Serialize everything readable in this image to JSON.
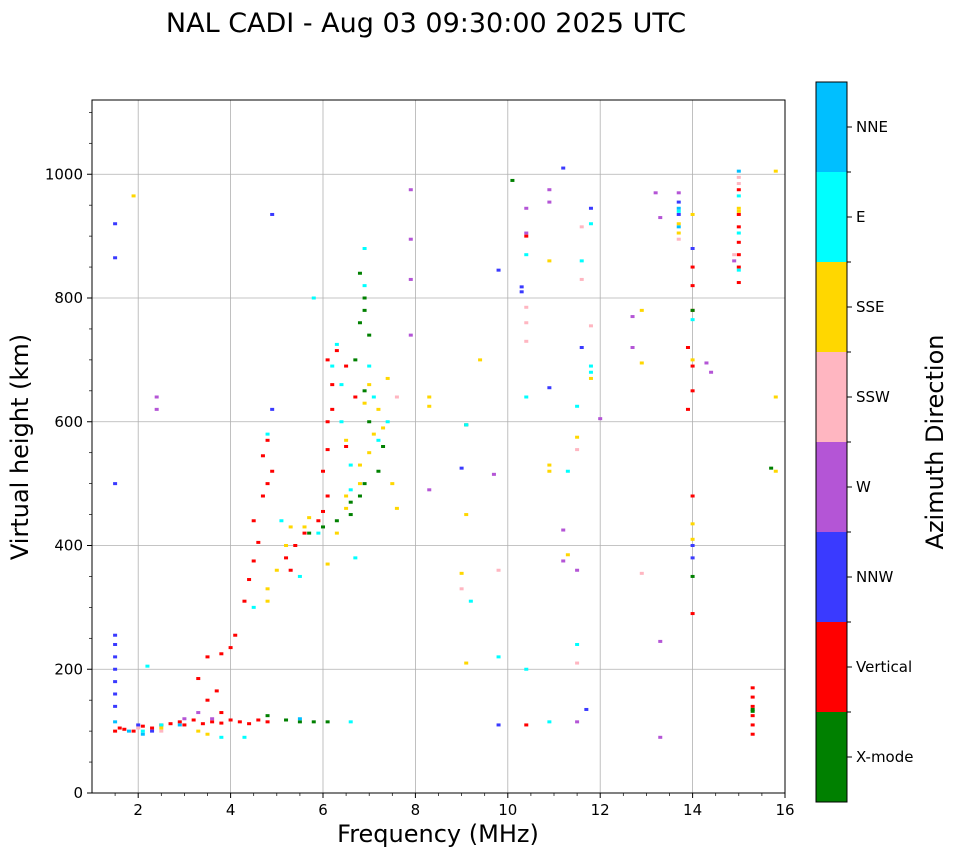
{
  "chart_data": {
    "type": "scatter",
    "title": "NAL CADI - Aug 03 09:30:00 2025 UTC",
    "xlabel": "Frequency (MHz)",
    "ylabel": "Virtual height (km)",
    "xlim": [
      1,
      16
    ],
    "ylim": [
      0,
      1120
    ],
    "xticks": [
      2,
      4,
      6,
      8,
      10,
      12,
      14,
      16
    ],
    "yticks": [
      0,
      200,
      400,
      600,
      800,
      1000
    ],
    "grid": true,
    "colorbar": {
      "label": "Azimuth Direction",
      "categories": [
        {
          "name": "X-mode",
          "color": "#008000"
        },
        {
          "name": "Vertical",
          "color": "#ff0000"
        },
        {
          "name": "NNW",
          "color": "#3a3aff"
        },
        {
          "name": "W",
          "color": "#b455d6"
        },
        {
          "name": "SSW",
          "color": "#ffb6c1"
        },
        {
          "name": "SSE",
          "color": "#ffd700"
        },
        {
          "name": "E",
          "color": "#00ffff"
        },
        {
          "name": "NNE",
          "color": "#00bfff"
        }
      ]
    },
    "series": [
      {
        "name": "Vertical",
        "points": [
          [
            1.5,
            100
          ],
          [
            1.6,
            105
          ],
          [
            1.7,
            103
          ],
          [
            1.9,
            100
          ],
          [
            2.1,
            108
          ],
          [
            2.3,
            105
          ],
          [
            2.5,
            110
          ],
          [
            2.7,
            112
          ],
          [
            2.9,
            115
          ],
          [
            3.0,
            110
          ],
          [
            3.2,
            118
          ],
          [
            3.4,
            112
          ],
          [
            3.6,
            115
          ],
          [
            3.8,
            113
          ],
          [
            4.0,
            118
          ],
          [
            4.2,
            115
          ],
          [
            4.4,
            112
          ],
          [
            4.6,
            118
          ],
          [
            4.8,
            115
          ],
          [
            3.8,
            130
          ],
          [
            3.5,
            150
          ],
          [
            3.7,
            165
          ],
          [
            3.3,
            185
          ],
          [
            3.5,
            220
          ],
          [
            3.8,
            225
          ],
          [
            4.0,
            235
          ],
          [
            4.1,
            255
          ],
          [
            4.3,
            310
          ],
          [
            4.4,
            345
          ],
          [
            4.5,
            375
          ],
          [
            4.6,
            405
          ],
          [
            4.5,
            440
          ],
          [
            4.7,
            480
          ],
          [
            4.8,
            500
          ],
          [
            4.9,
            520
          ],
          [
            4.7,
            545
          ],
          [
            4.8,
            570
          ],
          [
            5.2,
            380
          ],
          [
            5.4,
            400
          ],
          [
            5.6,
            420
          ],
          [
            5.3,
            360
          ],
          [
            5.9,
            440
          ],
          [
            6.0,
            455
          ],
          [
            6.1,
            480
          ],
          [
            6.0,
            520
          ],
          [
            6.1,
            555
          ],
          [
            6.1,
            600
          ],
          [
            6.2,
            620
          ],
          [
            6.2,
            660
          ],
          [
            6.1,
            700
          ],
          [
            6.3,
            715
          ],
          [
            6.5,
            690
          ],
          [
            6.7,
            640
          ],
          [
            6.5,
            560
          ],
          [
            14.0,
            290
          ],
          [
            14.0,
            480
          ],
          [
            13.9,
            620
          ],
          [
            14.0,
            650
          ],
          [
            14.0,
            690
          ],
          [
            13.9,
            720
          ],
          [
            14.0,
            780
          ],
          [
            14.0,
            820
          ],
          [
            14.0,
            850
          ],
          [
            15.0,
            825
          ],
          [
            15.0,
            850
          ],
          [
            15.0,
            870
          ],
          [
            15.0,
            890
          ],
          [
            15.0,
            915
          ],
          [
            15.0,
            935
          ],
          [
            15.0,
            975
          ],
          [
            15.3,
            95
          ],
          [
            15.3,
            110
          ],
          [
            15.3,
            125
          ],
          [
            15.3,
            140
          ],
          [
            15.3,
            155
          ],
          [
            15.3,
            170
          ],
          [
            10.4,
            900
          ],
          [
            10.4,
            110
          ]
        ]
      },
      {
        "name": "X-mode",
        "points": [
          [
            4.8,
            125
          ],
          [
            5.2,
            118
          ],
          [
            5.5,
            115
          ],
          [
            5.8,
            115
          ],
          [
            6.1,
            115
          ],
          [
            5.7,
            420
          ],
          [
            6.0,
            430
          ],
          [
            6.3,
            440
          ],
          [
            6.6,
            450
          ],
          [
            6.6,
            470
          ],
          [
            6.8,
            480
          ],
          [
            6.9,
            500
          ],
          [
            7.2,
            520
          ],
          [
            7.3,
            560
          ],
          [
            7.0,
            600
          ],
          [
            6.9,
            650
          ],
          [
            6.7,
            700
          ],
          [
            7.0,
            740
          ],
          [
            6.8,
            760
          ],
          [
            6.9,
            800
          ],
          [
            6.8,
            840
          ],
          [
            6.9,
            780
          ],
          [
            9.1,
            595
          ],
          [
            10.1,
            990
          ],
          [
            15.3,
            135
          ],
          [
            15.7,
            525
          ],
          [
            14.0,
            350
          ],
          [
            14.0,
            780
          ],
          [
            15.3,
            132
          ]
        ]
      },
      {
        "name": "NNW",
        "points": [
          [
            1.5,
            920
          ],
          [
            1.5,
            865
          ],
          [
            1.5,
            500
          ],
          [
            1.5,
            255
          ],
          [
            1.5,
            240
          ],
          [
            1.5,
            220
          ],
          [
            1.5,
            200
          ],
          [
            1.5,
            180
          ],
          [
            1.5,
            160
          ],
          [
            1.5,
            140
          ],
          [
            2.0,
            110
          ],
          [
            2.3,
            100
          ],
          [
            4.9,
            620
          ],
          [
            4.9,
            935
          ],
          [
            9.0,
            525
          ],
          [
            9.8,
            845
          ],
          [
            10.3,
            818
          ],
          [
            10.9,
            655
          ],
          [
            11.2,
            1010
          ],
          [
            11.6,
            720
          ],
          [
            11.8,
            945
          ],
          [
            13.7,
            955
          ],
          [
            13.7,
            935
          ],
          [
            14.0,
            880
          ],
          [
            14.0,
            380
          ],
          [
            14.0,
            400
          ],
          [
            11.7,
            135
          ],
          [
            9.8,
            110
          ],
          [
            10.3,
            810
          ]
        ]
      },
      {
        "name": "W",
        "points": [
          [
            2.4,
            620
          ],
          [
            2.4,
            640
          ],
          [
            3.0,
            120
          ],
          [
            3.3,
            130
          ],
          [
            3.6,
            120
          ],
          [
            7.9,
            975
          ],
          [
            7.9,
            895
          ],
          [
            7.9,
            830
          ],
          [
            7.9,
            740
          ],
          [
            8.3,
            490
          ],
          [
            9.7,
            515
          ],
          [
            10.4,
            945
          ],
          [
            10.4,
            905
          ],
          [
            10.9,
            975
          ],
          [
            10.9,
            955
          ],
          [
            11.2,
            425
          ],
          [
            11.2,
            375
          ],
          [
            11.5,
            360
          ],
          [
            11.5,
            115
          ],
          [
            12.0,
            605
          ],
          [
            12.7,
            720
          ],
          [
            12.7,
            770
          ],
          [
            13.2,
            970
          ],
          [
            13.3,
            930
          ],
          [
            13.3,
            245
          ],
          [
            13.3,
            90
          ],
          [
            14.3,
            695
          ],
          [
            14.4,
            680
          ],
          [
            13.7,
            970
          ],
          [
            14.9,
            860
          ]
        ]
      },
      {
        "name": "SSW",
        "points": [
          [
            2.0,
            105
          ],
          [
            2.5,
            100
          ],
          [
            7.6,
            640
          ],
          [
            9.0,
            330
          ],
          [
            9.8,
            360
          ],
          [
            10.4,
            785
          ],
          [
            10.4,
            760
          ],
          [
            10.4,
            730
          ],
          [
            11.5,
            555
          ],
          [
            11.5,
            210
          ],
          [
            11.6,
            915
          ],
          [
            11.6,
            830
          ],
          [
            11.8,
            755
          ],
          [
            12.9,
            355
          ],
          [
            13.7,
            895
          ],
          [
            15.0,
            995
          ],
          [
            15.0,
            985
          ],
          [
            14.9,
            870
          ]
        ]
      },
      {
        "name": "SSE",
        "points": [
          [
            1.9,
            965
          ],
          [
            2.5,
            105
          ],
          [
            3.3,
            100
          ],
          [
            3.5,
            95
          ],
          [
            4.8,
            310
          ],
          [
            4.8,
            330
          ],
          [
            5.0,
            360
          ],
          [
            5.2,
            400
          ],
          [
            5.3,
            430
          ],
          [
            5.6,
            430
          ],
          [
            5.7,
            445
          ],
          [
            6.1,
            370
          ],
          [
            6.3,
            420
          ],
          [
            6.5,
            460
          ],
          [
            6.5,
            480
          ],
          [
            6.8,
            500
          ],
          [
            6.8,
            530
          ],
          [
            7.0,
            550
          ],
          [
            7.1,
            580
          ],
          [
            7.3,
            590
          ],
          [
            7.2,
            620
          ],
          [
            7.0,
            660
          ],
          [
            7.4,
            670
          ],
          [
            7.6,
            460
          ],
          [
            7.5,
            500
          ],
          [
            6.5,
            570
          ],
          [
            6.9,
            630
          ],
          [
            8.3,
            640
          ],
          [
            8.3,
            625
          ],
          [
            9.1,
            450
          ],
          [
            9.0,
            355
          ],
          [
            9.1,
            210
          ],
          [
            9.4,
            700
          ],
          [
            10.9,
            860
          ],
          [
            10.9,
            530
          ],
          [
            10.9,
            520
          ],
          [
            11.3,
            385
          ],
          [
            11.5,
            575
          ],
          [
            11.8,
            670
          ],
          [
            12.9,
            780
          ],
          [
            12.9,
            695
          ],
          [
            13.7,
            920
          ],
          [
            13.7,
            905
          ],
          [
            14.0,
            935
          ],
          [
            14.0,
            700
          ],
          [
            14.0,
            435
          ],
          [
            14.0,
            410
          ],
          [
            15.0,
            945
          ],
          [
            15.0,
            940
          ],
          [
            15.8,
            1005
          ],
          [
            15.8,
            640
          ],
          [
            15.8,
            520
          ]
        ]
      },
      {
        "name": "E",
        "points": [
          [
            2.2,
            205
          ],
          [
            2.1,
            100
          ],
          [
            2.5,
            110
          ],
          [
            3.8,
            90
          ],
          [
            4.3,
            90
          ],
          [
            4.5,
            300
          ],
          [
            4.8,
            580
          ],
          [
            5.1,
            440
          ],
          [
            5.5,
            350
          ],
          [
            5.8,
            800
          ],
          [
            5.9,
            420
          ],
          [
            6.2,
            690
          ],
          [
            6.3,
            725
          ],
          [
            6.4,
            660
          ],
          [
            6.4,
            600
          ],
          [
            6.6,
            530
          ],
          [
            6.6,
            490
          ],
          [
            6.6,
            115
          ],
          [
            6.7,
            380
          ],
          [
            6.9,
            880
          ],
          [
            6.9,
            820
          ],
          [
            7.0,
            690
          ],
          [
            7.1,
            640
          ],
          [
            7.2,
            570
          ],
          [
            7.4,
            600
          ],
          [
            9.1,
            595
          ],
          [
            9.2,
            310
          ],
          [
            9.8,
            220
          ],
          [
            10.4,
            870
          ],
          [
            10.4,
            640
          ],
          [
            10.4,
            200
          ],
          [
            10.9,
            115
          ],
          [
            11.3,
            520
          ],
          [
            11.5,
            625
          ],
          [
            11.5,
            240
          ],
          [
            11.6,
            860
          ],
          [
            11.8,
            690
          ],
          [
            11.8,
            680
          ],
          [
            11.8,
            920
          ],
          [
            13.7,
            940
          ],
          [
            14.0,
            765
          ],
          [
            15.0,
            965
          ],
          [
            15.0,
            905
          ],
          [
            15.0,
            845
          ]
        ]
      },
      {
        "name": "NNE",
        "points": [
          [
            1.5,
            115
          ],
          [
            1.8,
            100
          ],
          [
            2.1,
            95
          ],
          [
            2.9,
            110
          ],
          [
            5.5,
            120
          ],
          [
            13.7,
            915
          ],
          [
            13.7,
            945
          ],
          [
            15.0,
            1005
          ]
        ]
      }
    ]
  }
}
